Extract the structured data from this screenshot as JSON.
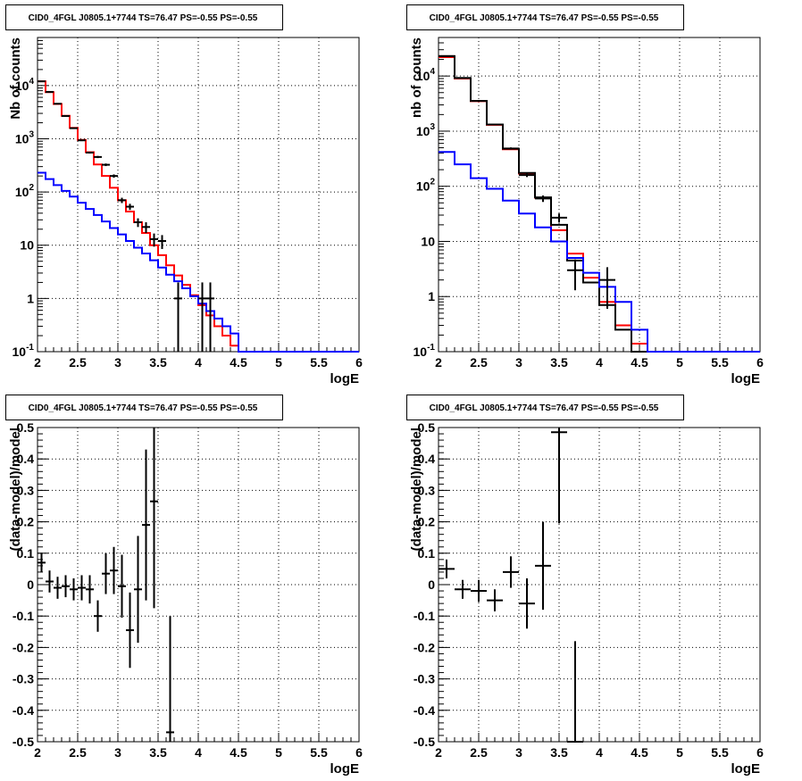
{
  "chart_data": [
    {
      "type": "step-histogram",
      "title": "CID0_4FGL J0805.1+7744 TS=76.47 PS=-0.55 PS=-0.55",
      "xlabel": "logE",
      "ylabel": "Nb of counts",
      "xlim": [
        2,
        6
      ],
      "ylim": [
        0.1,
        80000
      ],
      "yscale": "log",
      "grid": true,
      "x_ticks": [
        "2",
        "2.5",
        "3",
        "3.5",
        "4",
        "4.5",
        "5",
        "5.5",
        "6"
      ],
      "y_ticks": [
        "10^-1",
        "1",
        "10",
        "10^2",
        "10^3",
        "10^4"
      ],
      "bin_edges": [
        2.0,
        2.1,
        2.2,
        2.3,
        2.4,
        2.5,
        2.6,
        2.7,
        2.8,
        2.9,
        3.0,
        3.1,
        3.2,
        3.3,
        3.4,
        3.5,
        3.6,
        3.7,
        3.8,
        3.9,
        4.0,
        4.1,
        4.2,
        4.3,
        4.4,
        4.5,
        4.6,
        4.7,
        4.8,
        4.9,
        5.0,
        5.1,
        5.2,
        5.3,
        5.4,
        5.5,
        5.6,
        5.7,
        5.8,
        5.9,
        6.0
      ],
      "series": [
        {
          "kind": "model",
          "color": "#ff0000",
          "values": [
            12000,
            7500,
            4500,
            2700,
            1600,
            950,
            560,
            330,
            200,
            120,
            70,
            43,
            27,
            17,
            10,
            6.5,
            4.2,
            2.7,
            1.8,
            1.15,
            0.75,
            0.48,
            0.3,
            0.2,
            0.13,
            0.1,
            0.1,
            0.1,
            0.1,
            0.1,
            0.1,
            0.1,
            0.1,
            0.1,
            0.1,
            0.1,
            0.1,
            0.1,
            0.1,
            0.1
          ]
        },
        {
          "kind": "background",
          "color": "#0000ff",
          "values": [
            230,
            175,
            135,
            105,
            82,
            63,
            48,
            37,
            28,
            21,
            16,
            12,
            9,
            7,
            5.2,
            3.8,
            2.8,
            2.1,
            1.55,
            1.1,
            0.8,
            0.58,
            0.42,
            0.3,
            0.22,
            0.1,
            0.1,
            0.1,
            0.1,
            0.1,
            0.1,
            0.1,
            0.1,
            0.1,
            0.1,
            0.1,
            0.1,
            0.1,
            0.1,
            0.1
          ]
        }
      ],
      "points": [
        {
          "x": 2.05,
          "y": 12000,
          "lo": 11900,
          "hi": 12100
        },
        {
          "x": 2.15,
          "y": 7600,
          "lo": 7500,
          "hi": 7700
        },
        {
          "x": 2.25,
          "y": 4550,
          "lo": 4480,
          "hi": 4620
        },
        {
          "x": 2.35,
          "y": 2680,
          "lo": 2630,
          "hi": 2730
        },
        {
          "x": 2.45,
          "y": 1580,
          "lo": 1540,
          "hi": 1620
        },
        {
          "x": 2.55,
          "y": 935,
          "lo": 905,
          "hi": 965
        },
        {
          "x": 2.65,
          "y": 550,
          "lo": 527,
          "hi": 573
        },
        {
          "x": 2.75,
          "y": 455,
          "lo": 434,
          "hi": 476
        },
        {
          "x": 2.85,
          "y": 325,
          "lo": 307,
          "hi": 343
        },
        {
          "x": 2.95,
          "y": 200,
          "lo": 186,
          "hi": 214
        },
        {
          "x": 3.05,
          "y": 70,
          "lo": 62,
          "hi": 78
        },
        {
          "x": 3.15,
          "y": 53,
          "lo": 46,
          "hi": 60
        },
        {
          "x": 3.25,
          "y": 27,
          "lo": 22,
          "hi": 32
        },
        {
          "x": 3.35,
          "y": 22,
          "lo": 17,
          "hi": 27
        },
        {
          "x": 3.45,
          "y": 13,
          "lo": 9.4,
          "hi": 16.6
        },
        {
          "x": 3.55,
          "y": 12,
          "lo": 8.5,
          "hi": 15.5
        },
        {
          "x": 3.75,
          "y": 1,
          "lo": 0.1,
          "hi": 2.0
        },
        {
          "x": 4.05,
          "y": 1,
          "lo": 0.1,
          "hi": 2.0
        },
        {
          "x": 4.15,
          "y": 1,
          "lo": 0.1,
          "hi": 2.0
        }
      ]
    },
    {
      "type": "step-histogram",
      "title": "CID0_4FGL J0805.1+7744 TS=76.47 PS=-0.55 PS=-0.55",
      "xlabel": "logE",
      "ylabel": "nb of counts",
      "xlim": [
        2,
        6
      ],
      "ylim": [
        0.1,
        50000
      ],
      "yscale": "log",
      "grid": true,
      "x_ticks": [
        "2",
        "2.5",
        "3",
        "3.5",
        "4",
        "4.5",
        "5",
        "5.5",
        "6"
      ],
      "y_ticks": [
        "10^-1",
        "1",
        "10",
        "10^2",
        "10^3",
        "10^4"
      ],
      "bin_edges": [
        2.0,
        2.2,
        2.4,
        2.6,
        2.8,
        3.0,
        3.2,
        3.4,
        3.6,
        3.8,
        4.0,
        4.2,
        4.4,
        4.6,
        4.8,
        5.0,
        5.2,
        5.4,
        5.6,
        5.8,
        6.0
      ],
      "series": [
        {
          "kind": "model",
          "color": "#ff0000",
          "values": [
            22000,
            9000,
            3500,
            1300,
            470,
            170,
            62,
            16,
            6,
            2.2,
            0.8,
            0.3,
            0.14,
            0.1,
            0.1,
            0.1,
            0.1,
            0.1,
            0.1,
            0.1
          ]
        },
        {
          "kind": "data-hist",
          "color": "#000000",
          "values": [
            23000,
            9200,
            3550,
            1320,
            480,
            175,
            63,
            20,
            4.5,
            1.8,
            0.7,
            0.25,
            0.1,
            0.1,
            0.1,
            0.1,
            0.1,
            0.1,
            0.1,
            0.1
          ]
        },
        {
          "kind": "background",
          "color": "#0000ff",
          "values": [
            420,
            250,
            140,
            90,
            55,
            32,
            18,
            10,
            5,
            2.7,
            1.5,
            0.8,
            0.25,
            0.1,
            0.1,
            0.1,
            0.1,
            0.1,
            0.1,
            0.1
          ]
        }
      ],
      "points": [
        {
          "x": 2.1,
          "y": 23000,
          "lo": 22800,
          "hi": 23200
        },
        {
          "x": 2.3,
          "y": 9200,
          "lo": 9100,
          "hi": 9300
        },
        {
          "x": 2.5,
          "y": 3550,
          "lo": 3490,
          "hi": 3610
        },
        {
          "x": 2.7,
          "y": 1320,
          "lo": 1284,
          "hi": 1356
        },
        {
          "x": 2.9,
          "y": 485,
          "lo": 463,
          "hi": 507
        },
        {
          "x": 3.1,
          "y": 160,
          "lo": 147,
          "hi": 173
        },
        {
          "x": 3.3,
          "y": 60,
          "lo": 52,
          "hi": 68
        },
        {
          "x": 3.5,
          "y": 27,
          "lo": 22,
          "hi": 32
        },
        {
          "x": 3.7,
          "y": 3,
          "lo": 1.3,
          "hi": 4.7
        },
        {
          "x": 4.1,
          "y": 2,
          "lo": 0.6,
          "hi": 3.4
        }
      ]
    },
    {
      "type": "scatter-errorbar",
      "title": "CID0_4FGL J0805.1+7744 TS=76.47 PS=-0.55 PS=-0.55",
      "xlabel": "logE",
      "ylabel": "(data-model)/model",
      "xlim": [
        2,
        6
      ],
      "ylim": [
        -0.5,
        0.5
      ],
      "grid": true,
      "x_ticks": [
        "2",
        "2.5",
        "3",
        "3.5",
        "4",
        "4.5",
        "5",
        "5.5",
        "6"
      ],
      "y_ticks": [
        "-0.5",
        "-0.4",
        "-0.3",
        "-0.2",
        "-0.1",
        "0",
        "0.1",
        "0.2",
        "0.3",
        "0.4",
        "0.5"
      ],
      "xerr": 0.05,
      "points": [
        {
          "x": 2.05,
          "y": 0.07,
          "err": 0.03
        },
        {
          "x": 2.15,
          "y": 0.01,
          "err": 0.035
        },
        {
          "x": 2.25,
          "y": -0.01,
          "err": 0.035
        },
        {
          "x": 2.35,
          "y": -0.005,
          "err": 0.035
        },
        {
          "x": 2.45,
          "y": -0.015,
          "err": 0.035
        },
        {
          "x": 2.55,
          "y": -0.01,
          "err": 0.04
        },
        {
          "x": 2.65,
          "y": -0.015,
          "err": 0.045
        },
        {
          "x": 2.75,
          "y": -0.1,
          "err": 0.05
        },
        {
          "x": 2.85,
          "y": 0.035,
          "err": 0.065
        },
        {
          "x": 2.95,
          "y": 0.045,
          "err": 0.075
        },
        {
          "x": 3.05,
          "y": -0.005,
          "err": 0.1
        },
        {
          "x": 3.15,
          "y": -0.145,
          "err": 0.12
        },
        {
          "x": 3.25,
          "y": -0.015,
          "err": 0.17
        },
        {
          "x": 3.35,
          "y": 0.19,
          "err": 0.24
        },
        {
          "x": 3.45,
          "y": 0.265,
          "err": 0.34
        },
        {
          "x": 3.65,
          "y": -0.47,
          "err": 0.37
        }
      ]
    },
    {
      "type": "scatter-errorbar",
      "title": "CID0_4FGL J0805.1+7744 TS=76.47 PS=-0.55 PS=-0.55",
      "xlabel": "logE",
      "ylabel": "(data-model)/model",
      "xlim": [
        2,
        6
      ],
      "ylim": [
        -0.5,
        0.5
      ],
      "grid": true,
      "x_ticks": [
        "2",
        "2.5",
        "3",
        "3.5",
        "4",
        "4.5",
        "5",
        "5.5",
        "6"
      ],
      "y_ticks": [
        "-0.5",
        "-0.4",
        "-0.3",
        "-0.2",
        "-0.1",
        "0",
        "0.1",
        "0.2",
        "0.3",
        "0.4",
        "0.5"
      ],
      "xerr": 0.1,
      "points": [
        {
          "x": 2.1,
          "y": 0.05,
          "err": 0.03
        },
        {
          "x": 2.3,
          "y": -0.015,
          "err": 0.03
        },
        {
          "x": 2.5,
          "y": -0.02,
          "err": 0.035
        },
        {
          "x": 2.7,
          "y": -0.05,
          "err": 0.035
        },
        {
          "x": 2.9,
          "y": 0.04,
          "err": 0.05
        },
        {
          "x": 3.1,
          "y": -0.06,
          "err": 0.08
        },
        {
          "x": 3.3,
          "y": 0.06,
          "err": 0.14
        },
        {
          "x": 3.5,
          "y": 0.485,
          "err": 0.29
        },
        {
          "x": 3.7,
          "y": -0.5,
          "err": 0.32
        }
      ]
    }
  ]
}
